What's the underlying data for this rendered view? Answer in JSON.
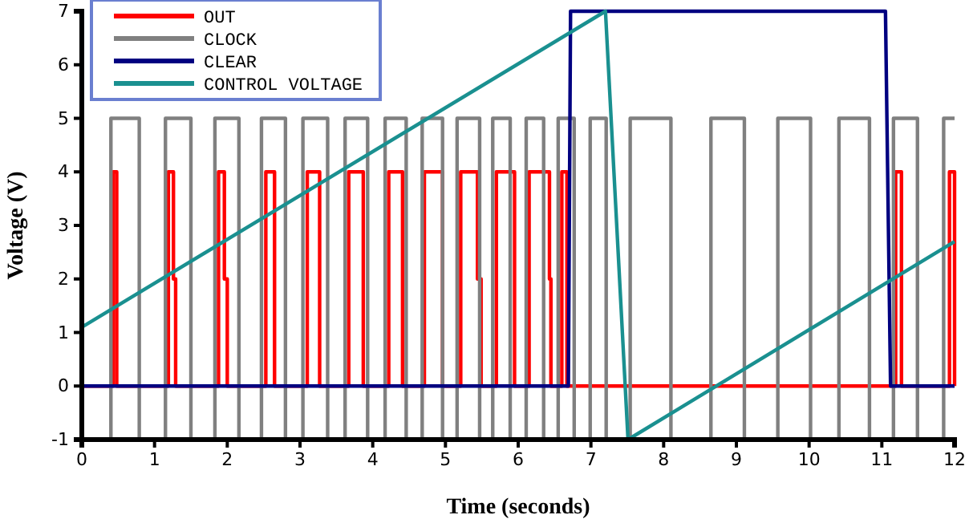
{
  "chart_data": {
    "type": "line",
    "xlabel": "Time (seconds)",
    "ylabel": "Voltage (V)",
    "xlim": [
      0,
      12
    ],
    "ylim": [
      -1,
      7
    ],
    "xticks": [
      0,
      1,
      2,
      3,
      4,
      5,
      6,
      7,
      8,
      9,
      10,
      11,
      12
    ],
    "yticks": [
      -1,
      0,
      1,
      2,
      3,
      4,
      5,
      6,
      7
    ],
    "grid": false,
    "legend": "top left",
    "marker": "none",
    "line_style": "solid",
    "series": [
      {
        "name": "OUT",
        "color": "#ff0000",
        "x": [
          0,
          0.43,
          0.43,
          0.48,
          0.48,
          1.19,
          1.19,
          1.26,
          1.26,
          1.29,
          1.29,
          1.88,
          1.88,
          1.96,
          1.96,
          2.0,
          2.0,
          2.53,
          2.53,
          2.65,
          2.65,
          3.1,
          3.1,
          3.27,
          3.27,
          3.67,
          3.67,
          3.87,
          3.87,
          4.22,
          4.22,
          4.41,
          4.41,
          4.71,
          4.71,
          4.96,
          4.96,
          5.21,
          5.21,
          5.44,
          5.44,
          5.49,
          5.49,
          5.7,
          5.7,
          5.95,
          5.95,
          6.15,
          6.15,
          6.43,
          6.43,
          6.45,
          6.45,
          6.6,
          6.6,
          6.67,
          6.67,
          11.19,
          11.19,
          11.27,
          11.27,
          11.93,
          11.93,
          12,
          12
        ],
        "values": [
          0,
          0,
          4,
          4,
          0,
          0,
          4,
          4,
          2,
          2,
          0,
          0,
          4,
          4,
          2,
          2,
          0,
          0,
          4,
          4,
          0,
          0,
          4,
          4,
          0,
          0,
          4,
          4,
          0,
          0,
          4,
          4,
          0,
          0,
          4,
          4,
          0,
          0,
          4,
          4,
          2,
          2,
          0,
          0,
          4,
          4,
          0,
          0,
          4,
          4,
          2,
          2,
          0,
          0,
          4,
          4,
          0,
          0,
          4,
          4,
          0,
          0,
          4,
          4,
          0
        ]
      },
      {
        "name": "CLOCK",
        "color": "#808080",
        "x": [
          0,
          0.4,
          0.4,
          0.79,
          0.79,
          1.15,
          1.15,
          1.5,
          1.5,
          1.83,
          1.83,
          2.16,
          2.16,
          2.47,
          2.47,
          2.8,
          2.8,
          3.04,
          3.04,
          3.38,
          3.38,
          3.62,
          3.62,
          3.93,
          3.93,
          4.17,
          4.17,
          4.46,
          4.46,
          4.68,
          4.68,
          4.96,
          4.96,
          5.16,
          5.16,
          5.47,
          5.47,
          5.65,
          5.65,
          5.89,
          5.89,
          6.11,
          6.11,
          6.35,
          6.35,
          6.55,
          6.55,
          6.77,
          6.77,
          6.99,
          6.99,
          7.21,
          7.21,
          7.54,
          7.54,
          8.1,
          8.1,
          8.65,
          8.65,
          9.11,
          9.11,
          9.57,
          9.57,
          10.02,
          10.02,
          10.41,
          10.41,
          10.83,
          10.83,
          11.16,
          11.16,
          11.49,
          11.49,
          11.85,
          11.85,
          12
        ],
        "values": [
          -1,
          -1,
          5,
          5,
          -1,
          -1,
          5,
          5,
          -1,
          -1,
          5,
          5,
          -1,
          -1,
          5,
          5,
          -1,
          -1,
          5,
          5,
          -1,
          -1,
          5,
          5,
          -1,
          -1,
          5,
          5,
          -1,
          -1,
          5,
          5,
          -1,
          -1,
          5,
          5,
          -1,
          -1,
          5,
          5,
          -1,
          -1,
          5,
          5,
          -1,
          -1,
          5,
          5,
          -1,
          -1,
          5,
          5,
          -1,
          -1,
          5,
          5,
          -1,
          -1,
          5,
          5,
          -1,
          -1,
          5,
          5,
          -1,
          -1,
          5,
          5,
          -1,
          -1,
          5,
          5,
          -1,
          -1,
          5,
          5
        ]
      },
      {
        "name": "CLEAR",
        "color": "#000080",
        "x": [
          0,
          6.69,
          6.72,
          11.05,
          11.12,
          12
        ],
        "values": [
          0,
          0,
          7,
          7,
          0,
          0
        ]
      },
      {
        "name": "CONTROL VOLTAGE",
        "color": "#1a9090",
        "x": [
          0,
          7.2,
          7.51,
          12
        ],
        "values": [
          1.1,
          7,
          -1,
          2.7
        ]
      }
    ]
  }
}
